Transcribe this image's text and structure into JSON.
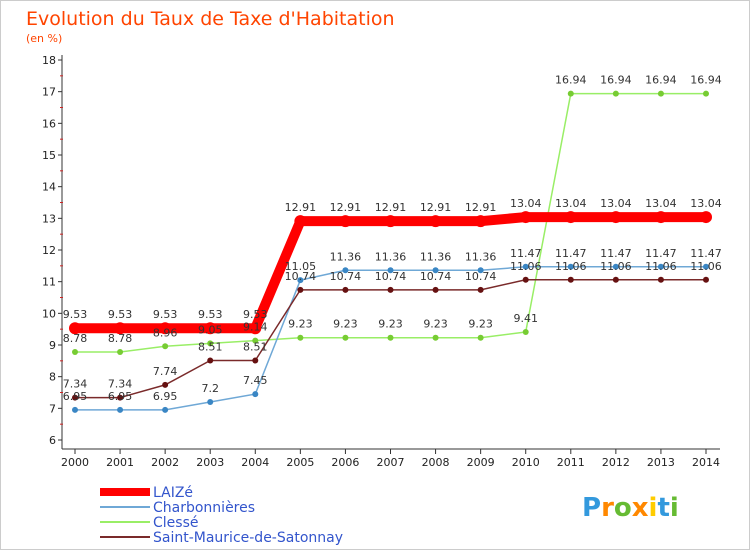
{
  "chart_data": {
    "type": "line",
    "title": "Evolution du Taux de Taxe d'Habitation",
    "subtitle": "(en %)",
    "categories": [
      "2000",
      "2001",
      "2002",
      "2003",
      "2004",
      "2005",
      "2006",
      "2007",
      "2008",
      "2009",
      "2010",
      "2011",
      "2012",
      "2013",
      "2014"
    ],
    "ylim": [
      6,
      18
    ],
    "yticks": [
      "6",
      "7",
      "8",
      "9",
      "10",
      "11",
      "12",
      "13",
      "14",
      "15",
      "16",
      "17",
      "18"
    ],
    "grid": false,
    "legend_position": "bottom-left",
    "series": [
      {
        "name": "LAIZé",
        "color": "#ff0000",
        "values": [
          9.53,
          9.53,
          9.53,
          9.53,
          9.53,
          12.91,
          12.91,
          12.91,
          12.91,
          12.91,
          13.04,
          13.04,
          13.04,
          13.04,
          13.04
        ],
        "labels": [
          "9.53",
          "9.53",
          "9.53",
          "9.53",
          "9.53",
          "12.91",
          "12.91",
          "12.91",
          "12.91",
          "12.91",
          "13.04",
          "13.04",
          "13.04",
          "13.04",
          "13.04"
        ]
      },
      {
        "name": "Charbonnières",
        "color": "#6fa8d6",
        "marker": "#3a86c4",
        "values": [
          6.95,
          6.95,
          6.95,
          7.2,
          7.45,
          11.05,
          11.36,
          11.36,
          11.36,
          11.36,
          11.47,
          11.47,
          11.47,
          11.47,
          11.47
        ],
        "labels": [
          "6.95",
          "6.95",
          "6.95",
          "7.2",
          "7.45",
          "11.05",
          "11.36",
          "11.36",
          "11.36",
          "11.36",
          "11.47",
          "11.47",
          "11.47",
          "11.47",
          "11.47"
        ]
      },
      {
        "name": "Clessé",
        "color": "#99ee66",
        "marker": "#77cc33",
        "values": [
          8.78,
          8.78,
          8.96,
          9.05,
          9.14,
          9.23,
          9.23,
          9.23,
          9.23,
          9.23,
          9.41,
          16.94,
          16.94,
          16.94,
          16.94
        ],
        "labels": [
          "8.78",
          "8.78",
          "8.96",
          "9.05",
          "9.14",
          "9.23",
          "9.23",
          "9.23",
          "9.23",
          "9.23",
          "9.41",
          "16.94",
          "16.94",
          "16.94",
          "16.94"
        ]
      },
      {
        "name": "Saint-Maurice-de-Satonnay",
        "color": "#7a2a2a",
        "marker": "#661111",
        "values": [
          7.34,
          7.34,
          7.74,
          8.51,
          8.51,
          10.74,
          10.74,
          10.74,
          10.74,
          10.74,
          11.06,
          11.06,
          11.06,
          11.06,
          11.06
        ],
        "labels": [
          "7.34",
          "7.34",
          "7.74",
          "8.51",
          "8.51",
          "10.74",
          "10.74",
          "10.74",
          "10.74",
          "10.74",
          "11.06",
          "11.06",
          "11.06",
          "11.06",
          "11.06"
        ]
      }
    ]
  },
  "branding": {
    "letters": [
      "P",
      "r",
      "o",
      "x",
      "i",
      "t",
      "i"
    ],
    "colors": [
      "#3399dd",
      "#ff8800",
      "#66bb33",
      "#ff8800",
      "#ffcc00",
      "#3399dd",
      "#66bb33"
    ]
  }
}
